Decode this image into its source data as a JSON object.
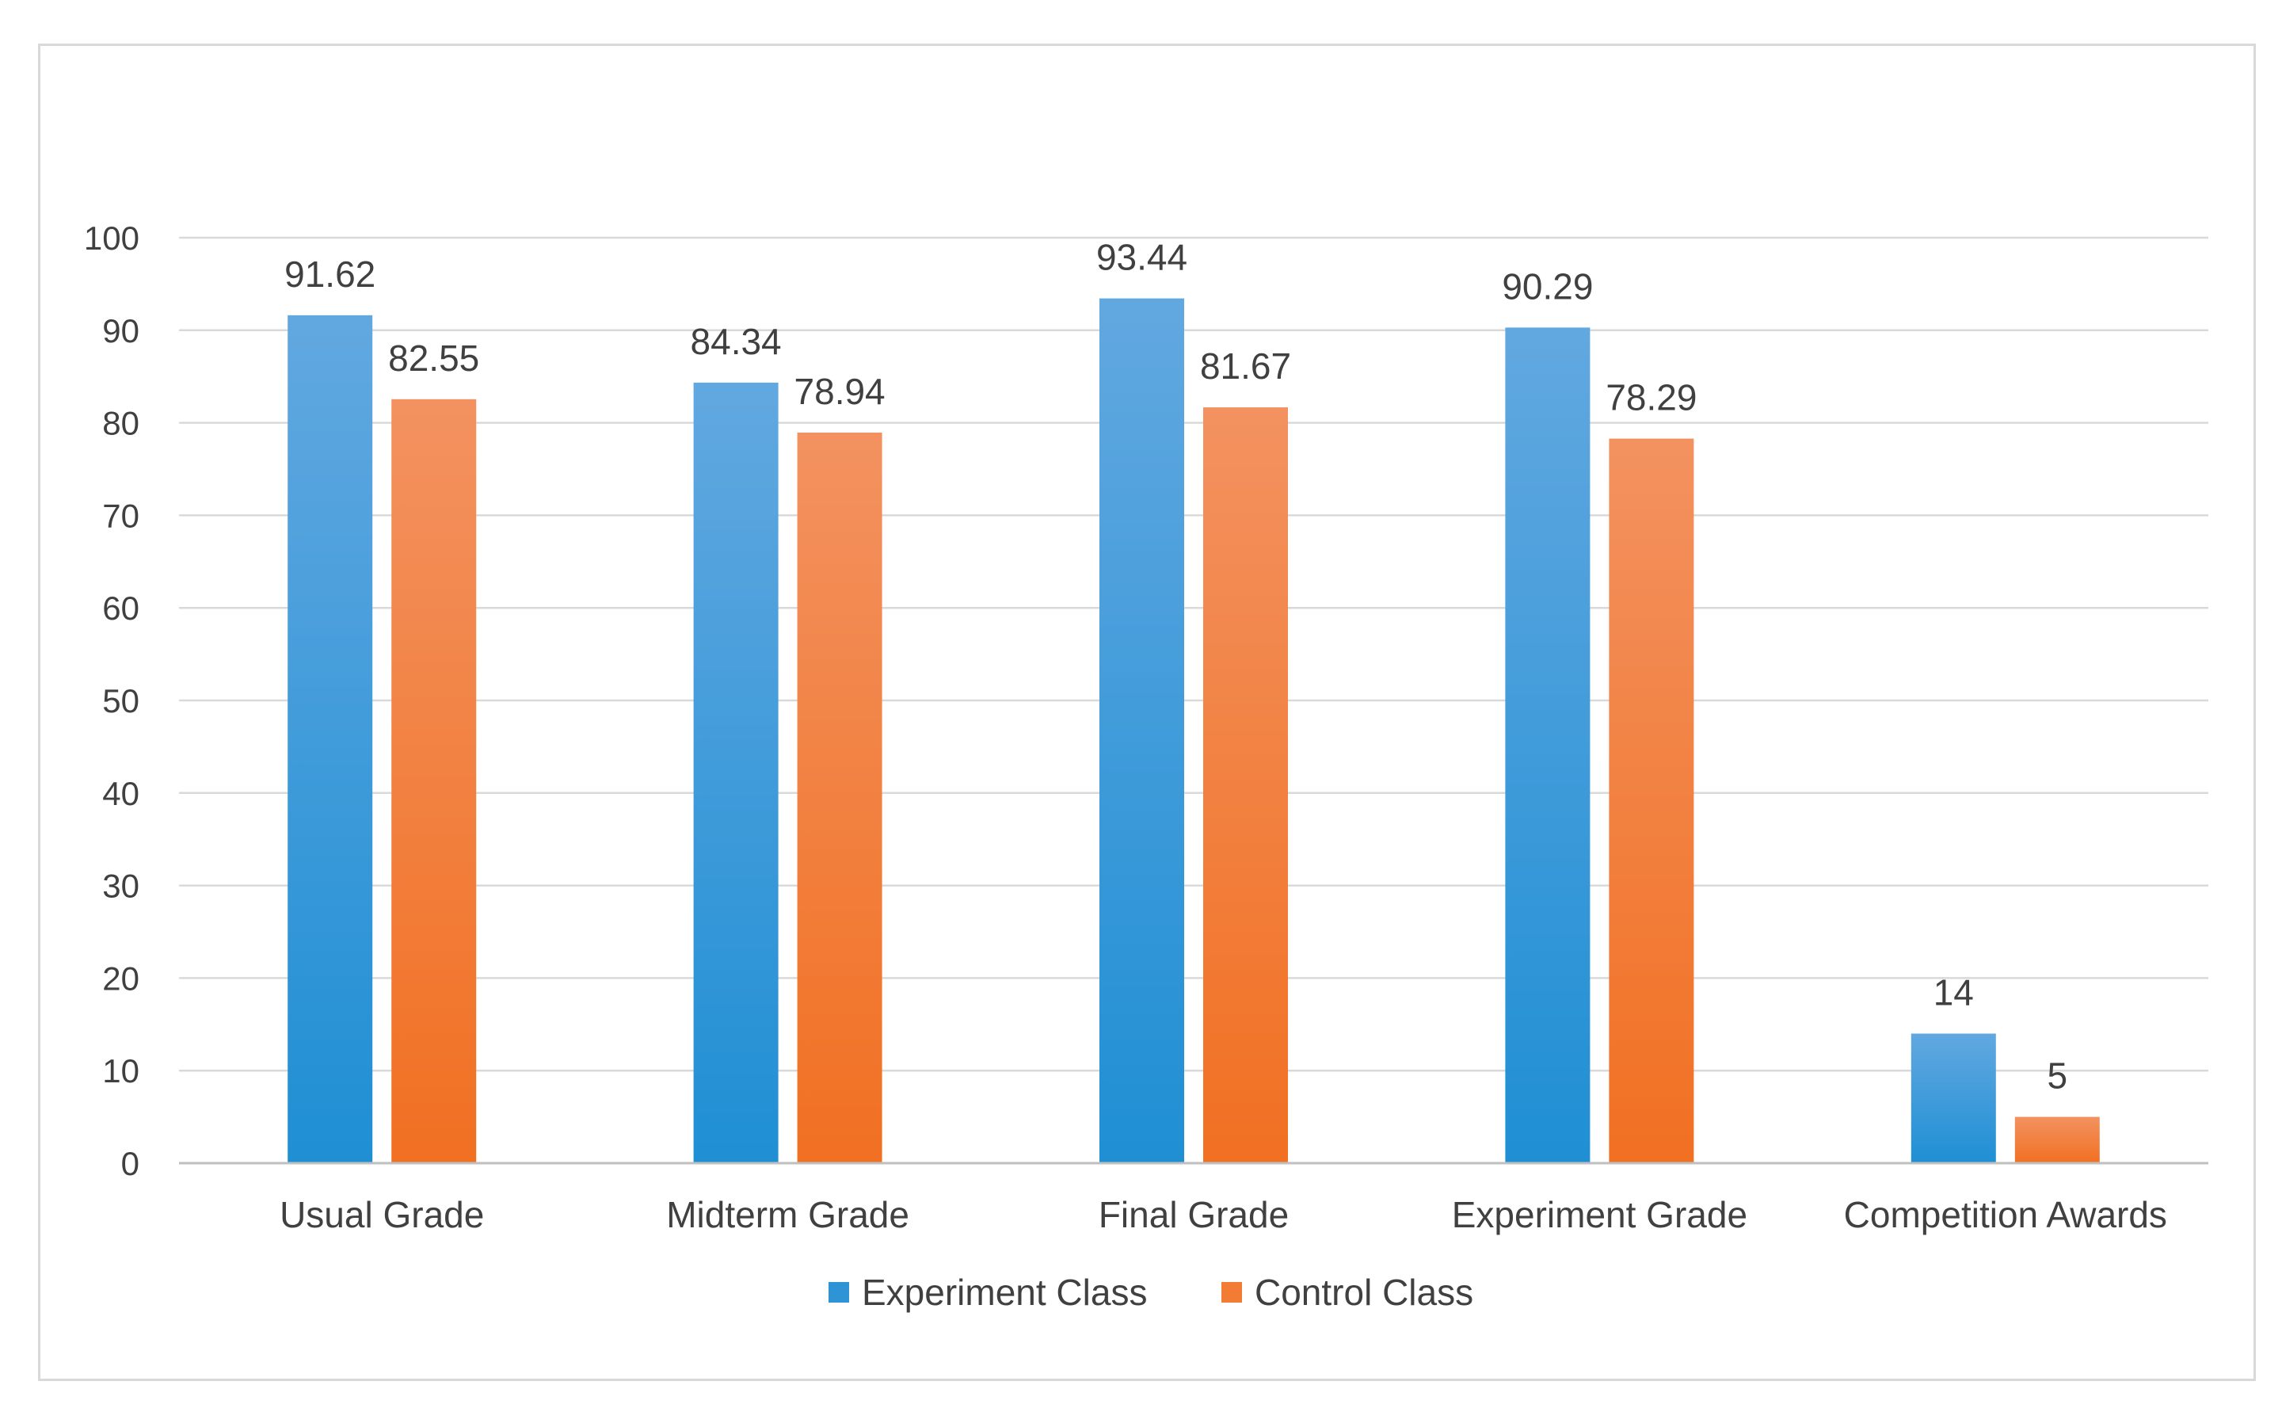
{
  "chart_data": {
    "type": "bar",
    "title": "",
    "xlabel": "",
    "ylabel": "",
    "ylim": [
      0,
      100
    ],
    "yticks": [
      0,
      10,
      20,
      30,
      40,
      50,
      60,
      70,
      80,
      90,
      100
    ],
    "grid": true,
    "legend_position": "bottom",
    "categories": [
      "Usual Grade",
      "Midterm Grade",
      "Final Grade",
      "Experiment Grade",
      "Competition Awards"
    ],
    "series": [
      {
        "name": "Experiment Class",
        "values": [
          91.62,
          84.34,
          93.44,
          90.29,
          14
        ],
        "labels": [
          "91.62",
          "84.34",
          "93.44",
          "90.29",
          "14"
        ],
        "color_top": "#62a8e0",
        "color_bottom": "#1f8fd4",
        "legend_color": "#2e94d6"
      },
      {
        "name": "Control Class",
        "values": [
          82.55,
          78.94,
          81.67,
          78.29,
          5
        ],
        "labels": [
          "82.55",
          "78.94",
          "81.67",
          "78.29",
          "5"
        ],
        "color_top": "#f39260",
        "color_bottom": "#f17022",
        "legend_color": "#f37c34"
      }
    ]
  }
}
